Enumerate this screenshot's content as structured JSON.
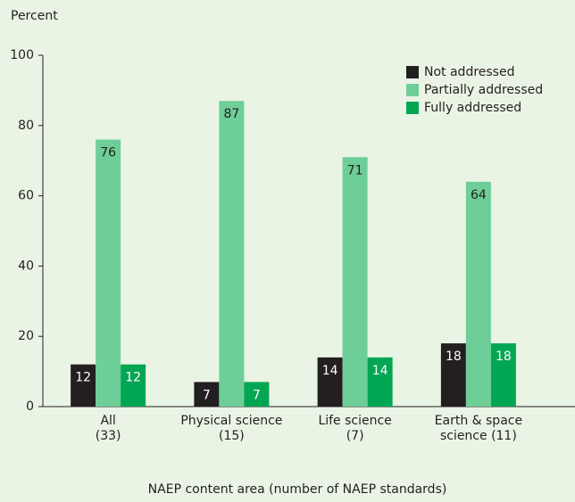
{
  "chart_data": {
    "type": "bar",
    "y_label": "Percent",
    "x_label": "NAEP content area (number of NAEP standards)",
    "categories": [
      [
        "All",
        "(33)"
      ],
      [
        "Physical science",
        "(15)"
      ],
      [
        "Life science",
        "(7)"
      ],
      [
        "Earth & space",
        "science (11)"
      ]
    ],
    "series": [
      {
        "name": "Not addressed",
        "color": "#231f20",
        "values": [
          12,
          7,
          14,
          18
        ]
      },
      {
        "name": "Partially addressed",
        "color": "#6dcf97",
        "values": [
          76,
          87,
          71,
          64
        ]
      },
      {
        "name": "Fully addressed",
        "color": "#00a651",
        "values": [
          12,
          7,
          14,
          18
        ]
      }
    ],
    "ylim": [
      0,
      100
    ],
    "yticks": [
      0,
      20,
      40,
      60,
      80,
      100
    ],
    "legend": "top-right"
  }
}
